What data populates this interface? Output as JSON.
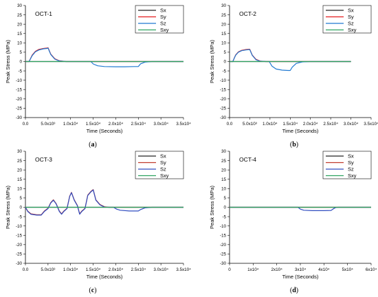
{
  "chart_data": [
    {
      "type": "line",
      "title": "OCT-1",
      "caption_letter": "a",
      "xlabel": "Time (Seconds)",
      "ylabel": "Peak Stress (MPa)",
      "xlim": [
        0,
        35000
      ],
      "ylim": [
        -30,
        30
      ],
      "xticks": [
        {
          "v": 0,
          "t": "0.0"
        },
        {
          "v": 5000,
          "t": "5.0x10³"
        },
        {
          "v": 10000,
          "t": "1.0x10⁴"
        },
        {
          "v": 15000,
          "t": "1.5x10⁴"
        },
        {
          "v": 20000,
          "t": "2.0x10⁴"
        },
        {
          "v": 25000,
          "t": "2.5x10⁴"
        },
        {
          "v": 30000,
          "t": "3.0x10⁴"
        },
        {
          "v": 35000,
          "t": "3.5x10⁴"
        }
      ],
      "yticks": [
        -30,
        -25,
        -20,
        -15,
        -10,
        -5,
        0,
        5,
        10,
        15,
        20,
        25,
        30
      ],
      "legend": [
        "Sx",
        "Sy",
        "Sz",
        "Sxy"
      ],
      "legend_position": "top-right",
      "series": [
        {
          "name": "Sx",
          "color": "#222222",
          "points": [
            [
              0,
              0
            ],
            [
              26000,
              0
            ],
            [
              35000,
              0
            ]
          ]
        },
        {
          "name": "Sy",
          "color": "#e31a1c",
          "points": [
            [
              0,
              0
            ],
            [
              800,
              0
            ],
            [
              1500,
              3.5
            ],
            [
              2200,
              5.5
            ],
            [
              3000,
              6.5
            ],
            [
              4000,
              7
            ],
            [
              4800,
              7.2
            ],
            [
              5000,
              7.4
            ],
            [
              5600,
              4
            ],
            [
              6500,
              1.5
            ],
            [
              7500,
              0.4
            ],
            [
              9000,
              0
            ],
            [
              26000,
              0
            ],
            [
              35000,
              0
            ]
          ]
        },
        {
          "name": "Sz",
          "color": "#1f78d1",
          "points": [
            [
              0,
              0
            ],
            [
              800,
              0
            ],
            [
              1500,
              3.2
            ],
            [
              2200,
              5.2
            ],
            [
              3000,
              6.2
            ],
            [
              4000,
              6.8
            ],
            [
              4800,
              7
            ],
            [
              5000,
              7.2
            ],
            [
              5600,
              3.8
            ],
            [
              6500,
              1.3
            ],
            [
              7500,
              0.3
            ],
            [
              9000,
              0
            ],
            [
              14500,
              0
            ],
            [
              15000,
              -1.3
            ],
            [
              16000,
              -2.3
            ],
            [
              17500,
              -2.7
            ],
            [
              20000,
              -2.8
            ],
            [
              22000,
              -2.8
            ],
            [
              24000,
              -2.7
            ],
            [
              25000,
              -2.7
            ],
            [
              25500,
              -1.2
            ],
            [
              26500,
              -0.3
            ],
            [
              28000,
              0
            ],
            [
              35000,
              0
            ]
          ]
        },
        {
          "name": "Sxy",
          "color": "#2ca25f",
          "points": [
            [
              0,
              0
            ],
            [
              35000,
              0
            ]
          ]
        }
      ]
    },
    {
      "type": "line",
      "title": "OCT-2",
      "caption_letter": "b",
      "xlabel": "Time (Seconds)",
      "ylabel": "Peak Stress (MPa)",
      "xlim": [
        0,
        35000
      ],
      "ylim": [
        -30,
        30
      ],
      "xticks": [
        {
          "v": 0,
          "t": "0.0"
        },
        {
          "v": 5000,
          "t": "5.0x10³"
        },
        {
          "v": 10000,
          "t": "1.0x10⁴"
        },
        {
          "v": 15000,
          "t": "1.5x10⁴"
        },
        {
          "v": 20000,
          "t": "2.0x10⁴"
        },
        {
          "v": 25000,
          "t": "2.5x10⁴"
        },
        {
          "v": 30000,
          "t": "3.0x10⁴"
        },
        {
          "v": 35000,
          "t": "3.5x10⁴"
        }
      ],
      "yticks": [
        -30,
        -25,
        -20,
        -15,
        -10,
        -5,
        0,
        5,
        10,
        15,
        20,
        25,
        30
      ],
      "legend": [
        "Sx",
        "Sy",
        "Sz",
        "Sxy"
      ],
      "legend_position": "top-right",
      "series": [
        {
          "name": "Sx",
          "color": "#222222",
          "points": [
            [
              0,
              0
            ],
            [
              30000,
              0
            ]
          ]
        },
        {
          "name": "Sy",
          "color": "#e31a1c",
          "points": [
            [
              0,
              0
            ],
            [
              800,
              0
            ],
            [
              1500,
              3.5
            ],
            [
              2200,
              5.2
            ],
            [
              3000,
              6
            ],
            [
              4000,
              6.4
            ],
            [
              4800,
              6.6
            ],
            [
              5000,
              6.6
            ],
            [
              5600,
              3.5
            ],
            [
              6500,
              1.2
            ],
            [
              7500,
              0.3
            ],
            [
              9000,
              0
            ],
            [
              30000,
              0
            ]
          ]
        },
        {
          "name": "Sz",
          "color": "#1f78d1",
          "points": [
            [
              0,
              0
            ],
            [
              800,
              0
            ],
            [
              1500,
              3.3
            ],
            [
              2200,
              5
            ],
            [
              3000,
              5.8
            ],
            [
              4000,
              6.2
            ],
            [
              4800,
              6.4
            ],
            [
              5000,
              6.4
            ],
            [
              5600,
              3.3
            ],
            [
              6500,
              1
            ],
            [
              7500,
              0.2
            ],
            [
              9000,
              0
            ],
            [
              9800,
              0
            ],
            [
              10500,
              -2.5
            ],
            [
              11500,
              -4
            ],
            [
              13000,
              -4.6
            ],
            [
              14500,
              -4.8
            ],
            [
              15000,
              -4.8
            ],
            [
              15500,
              -3
            ],
            [
              16500,
              -1
            ],
            [
              18000,
              -0.2
            ],
            [
              20000,
              0
            ],
            [
              30000,
              0
            ]
          ]
        },
        {
          "name": "Sxy",
          "color": "#2ca25f",
          "points": [
            [
              0,
              0
            ],
            [
              30000,
              0
            ]
          ]
        }
      ]
    },
    {
      "type": "line",
      "title": "OCT-3",
      "caption_letter": "c",
      "xlabel": "Time (Seconds)",
      "ylabel": "Peak Stress (MPa)",
      "xlim": [
        0,
        35000
      ],
      "ylim": [
        -30,
        30
      ],
      "xticks": [
        {
          "v": 0,
          "t": "0.0"
        },
        {
          "v": 5000,
          "t": "5.0x10³"
        },
        {
          "v": 10000,
          "t": "1.0x10⁴"
        },
        {
          "v": 15000,
          "t": "1.5x10⁴"
        },
        {
          "v": 20000,
          "t": "2.0x10⁴"
        },
        {
          "v": 25000,
          "t": "2.5x10⁴"
        },
        {
          "v": 30000,
          "t": "3.0x10⁴"
        },
        {
          "v": 35000,
          "t": "3.5x10⁴"
        }
      ],
      "yticks": [
        -30,
        -25,
        -20,
        -15,
        -10,
        -5,
        0,
        5,
        10,
        15,
        20,
        25,
        30
      ],
      "legend": [
        "Sx",
        "Sy",
        "Sz",
        "Sxy"
      ],
      "legend_position": "top-right",
      "series": [
        {
          "name": "Sx",
          "color": "#222222",
          "points": [
            [
              0,
              0
            ],
            [
              35000,
              0
            ]
          ]
        },
        {
          "name": "Sy",
          "color": "#c0392b",
          "points": [
            [
              0,
              0
            ],
            [
              500,
              -2
            ],
            [
              1200,
              -3.5
            ],
            [
              2500,
              -4
            ],
            [
              3500,
              -4
            ],
            [
              4200,
              -2
            ],
            [
              5000,
              -0.5
            ],
            [
              5600,
              2.5
            ],
            [
              6200,
              4
            ],
            [
              6800,
              2
            ],
            [
              7500,
              -2
            ],
            [
              8000,
              -3.5
            ],
            [
              8500,
              -2
            ],
            [
              9200,
              -0.5
            ],
            [
              9800,
              6
            ],
            [
              10200,
              8
            ],
            [
              10800,
              4
            ],
            [
              11500,
              1
            ],
            [
              12000,
              -3.5
            ],
            [
              12500,
              -2
            ],
            [
              13200,
              -0.5
            ],
            [
              13800,
              6.5
            ],
            [
              14500,
              8.5
            ],
            [
              15000,
              9.5
            ],
            [
              15600,
              4
            ],
            [
              16500,
              1.5
            ],
            [
              17500,
              0.3
            ],
            [
              18500,
              0
            ],
            [
              35000,
              0
            ]
          ]
        },
        {
          "name": "Sz",
          "color": "#2f4cc0",
          "points": [
            [
              0,
              0
            ],
            [
              500,
              -2.2
            ],
            [
              1200,
              -3.7
            ],
            [
              2500,
              -4.2
            ],
            [
              3500,
              -4.2
            ],
            [
              4200,
              -2.2
            ],
            [
              5000,
              -0.7
            ],
            [
              5600,
              2.3
            ],
            [
              6200,
              3.8
            ],
            [
              6800,
              1.8
            ],
            [
              7500,
              -2.2
            ],
            [
              8000,
              -3.7
            ],
            [
              8500,
              -2.2
            ],
            [
              9200,
              -0.7
            ],
            [
              9800,
              5.8
            ],
            [
              10200,
              7.8
            ],
            [
              10800,
              3.8
            ],
            [
              11500,
              0.8
            ],
            [
              12000,
              -3.7
            ],
            [
              12500,
              -2.2
            ],
            [
              13200,
              -0.7
            ],
            [
              13800,
              6.3
            ],
            [
              14500,
              8.3
            ],
            [
              15000,
              9.3
            ],
            [
              15600,
              3.8
            ],
            [
              16500,
              1.3
            ],
            [
              17500,
              0.1
            ],
            [
              18500,
              0
            ],
            [
              19500,
              0
            ],
            [
              20200,
              -1
            ],
            [
              21000,
              -1.6
            ],
            [
              23000,
              -2
            ],
            [
              25000,
              -2
            ],
            [
              25500,
              -1.2
            ],
            [
              26500,
              -0.3
            ],
            [
              28000,
              0
            ],
            [
              35000,
              0
            ]
          ]
        },
        {
          "name": "Sxy",
          "color": "#2ca25f",
          "points": [
            [
              0,
              0
            ],
            [
              35000,
              0
            ]
          ]
        }
      ]
    },
    {
      "type": "line",
      "title": "OCT-4",
      "caption_letter": "d",
      "xlabel": "Time (Seconds)",
      "ylabel": "Peak Stress (MPa)",
      "xlim": [
        0,
        60000
      ],
      "ylim": [
        -30,
        30
      ],
      "xticks": [
        {
          "v": 0,
          "t": "0"
        },
        {
          "v": 10000,
          "t": "1x10⁴"
        },
        {
          "v": 20000,
          "t": "2x10⁴"
        },
        {
          "v": 30000,
          "t": "3x10⁴"
        },
        {
          "v": 40000,
          "t": "4x10⁴"
        },
        {
          "v": 50000,
          "t": "5x10⁴"
        },
        {
          "v": 60000,
          "t": "6x10⁴"
        }
      ],
      "yticks": [
        -30,
        -25,
        -20,
        -15,
        -10,
        -5,
        0,
        5,
        10,
        15,
        20,
        25,
        30
      ],
      "legend": [
        "Sx",
        "Sy",
        "Sz",
        "Sxy"
      ],
      "legend_position": "top-right",
      "series": [
        {
          "name": "Sx",
          "color": "#222222",
          "points": [
            [
              0,
              0
            ],
            [
              60000,
              0
            ]
          ]
        },
        {
          "name": "Sy",
          "color": "#c0392b",
          "points": [
            [
              0,
              0
            ],
            [
              60000,
              0
            ]
          ]
        },
        {
          "name": "Sz",
          "color": "#2f4cc0",
          "points": [
            [
              0,
              0
            ],
            [
              29000,
              0
            ],
            [
              30000,
              -1
            ],
            [
              31500,
              -1.6
            ],
            [
              35000,
              -1.8
            ],
            [
              40000,
              -1.8
            ],
            [
              43000,
              -1.7
            ],
            [
              44000,
              -0.8
            ],
            [
              45000,
              -0.1
            ],
            [
              46000,
              0
            ],
            [
              60000,
              0
            ]
          ]
        },
        {
          "name": "Sxy",
          "color": "#2ca25f",
          "points": [
            [
              0,
              0
            ],
            [
              60000,
              0
            ]
          ]
        }
      ]
    }
  ]
}
